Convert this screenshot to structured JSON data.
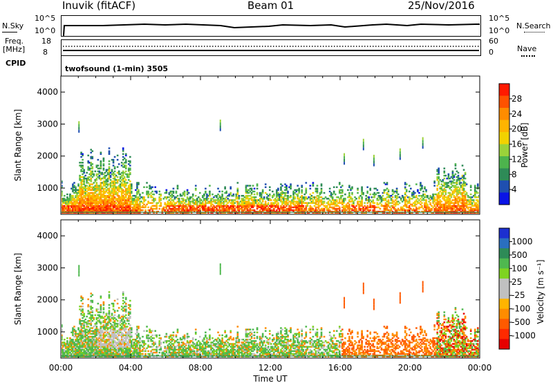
{
  "header": {
    "station": "Inuvik (fitACF)",
    "beam": "Beam 01",
    "date": "25/Nov/2016"
  },
  "top_panels": {
    "nsky_label": "N.Sky",
    "nsky_ticks": [
      "10^5",
      "10^0"
    ],
    "nsearch_label": "N.Search",
    "nsearch_ticks": [
      "10^5",
      "10^0"
    ],
    "freq_label": "Freq.",
    "freq_unit": "[MHz]",
    "freq_ticks": [
      "18",
      "8"
    ],
    "nave_label": "Nave",
    "nave_ticks": [
      "60",
      "0"
    ],
    "cpid_label": "CPID",
    "cpid_value": "twofsound (1-min) 3505"
  },
  "power_colorbar": {
    "label": "Power [dB]",
    "ticks": [
      "28",
      "24",
      "20",
      "16",
      "12",
      "8",
      "4"
    ],
    "colors": [
      "#ff1a00",
      "#ff5200",
      "#ff8c00",
      "#ffb400",
      "#f2d200",
      "#9bd23a",
      "#4db34d",
      "#2e8b57",
      "#1f4fb0",
      "#0a14e6"
    ]
  },
  "velocity_colorbar": {
    "label": "Velocity [m s⁻¹]",
    "ticks": [
      "1000",
      "500",
      "100",
      "25",
      "-25",
      "-100",
      "-500",
      "-1000"
    ],
    "colors": [
      "#1c2fd0",
      "#2a6fbf",
      "#2e8b57",
      "#4fb84f",
      "#7ed321",
      "#c0c0c0",
      "#c0c0c0",
      "#ffb400",
      "#ff8c00",
      "#ff5a00",
      "#ff2a00",
      "#e60000"
    ]
  },
  "chart_data": {
    "type": "heatmap",
    "x_ticks": [
      "00:00",
      "04:00",
      "08:00",
      "12:00",
      "16:00",
      "20:00",
      "00:00"
    ],
    "x_label": "Time UT",
    "y_label": "Slant Range [km]",
    "y_ticks": [
      "4000",
      "3000",
      "2000",
      "1000"
    ],
    "ylim": [
      180,
      4500
    ],
    "xlim_hours": [
      0,
      24
    ],
    "panels": [
      {
        "name": "power",
        "colorbar": "power_colorbar"
      },
      {
        "name": "velocity",
        "colorbar": "velocity_colorbar"
      }
    ]
  }
}
